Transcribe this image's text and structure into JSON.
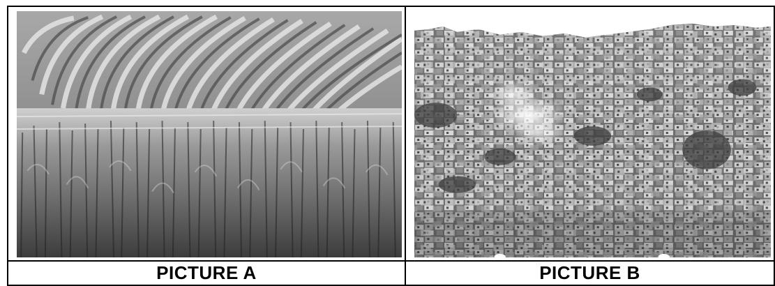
{
  "pictures": [
    {
      "caption": "PICTURE A",
      "subject": "corn-field"
    },
    {
      "caption": "PICTURE B",
      "subject": "hillside-houses"
    }
  ],
  "palette": {
    "sky": "#ffffff",
    "field_dark": "#3a3a3a",
    "field_light": "#d8d8d8",
    "house_light": "#e6e6e6",
    "house_dark": "#5a5a5a"
  }
}
